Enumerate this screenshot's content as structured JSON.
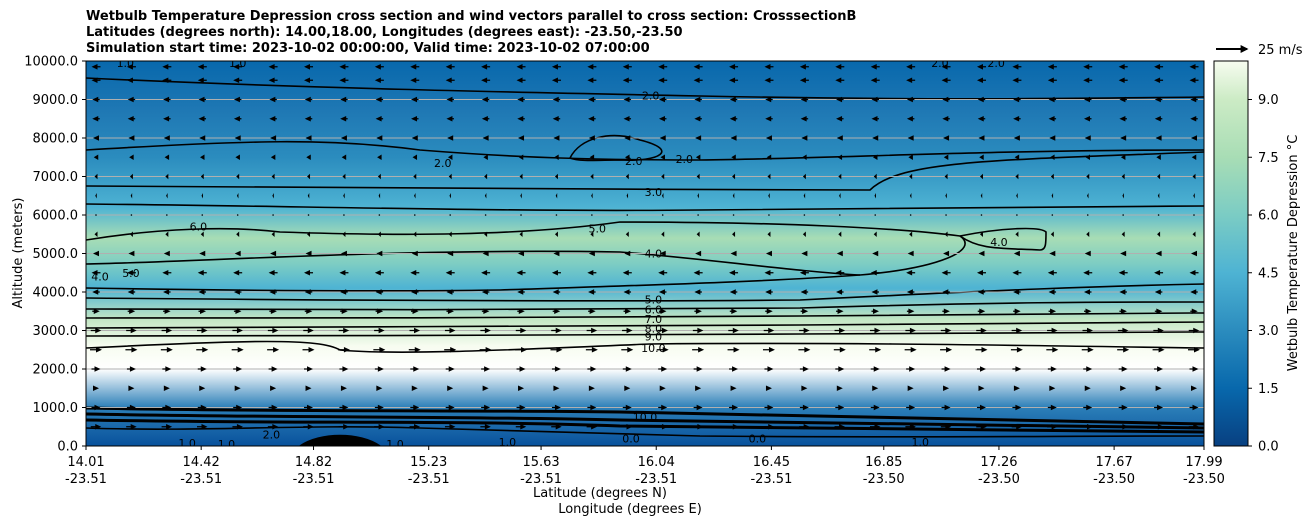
{
  "chart_data": {
    "type": "heatmap",
    "title_lines": [
      "Wetbulb Temperature Depression cross section and wind vectors parallel to cross section: CrosssectionB",
      "Latitudes (degrees north): 14.00,18.00, Longitudes (degrees east): -23.50,-23.50",
      "Simulation start time: 2023-10-02 00:00:00, Valid time: 2023-10-02 07:00:00"
    ],
    "ylabel": "Altitude (meters)",
    "xlabel_1": "Latitude (degrees N)",
    "xlabel_2": "Longitude (degrees E)",
    "ylim": [
      0,
      10000
    ],
    "y_ticks": [
      "0.0",
      "1000.0",
      "2000.0",
      "3000.0",
      "4000.0",
      "5000.0",
      "6000.0",
      "7000.0",
      "8000.0",
      "9000.0",
      "10000.0"
    ],
    "x_range": [
      14.01,
      17.99
    ],
    "x_ticks": [
      {
        "lat": "14.01",
        "lon": "-23.51"
      },
      {
        "lat": "14.42",
        "lon": "-23.51"
      },
      {
        "lat": "14.82",
        "lon": "-23.51"
      },
      {
        "lat": "15.23",
        "lon": "-23.51"
      },
      {
        "lat": "15.63",
        "lon": "-23.51"
      },
      {
        "lat": "16.04",
        "lon": "-23.51"
      },
      {
        "lat": "16.45",
        "lon": "-23.51"
      },
      {
        "lat": "16.85",
        "lon": "-23.50"
      },
      {
        "lat": "17.26",
        "lon": "-23.50"
      },
      {
        "lat": "17.67",
        "lon": "-23.50"
      },
      {
        "lat": "17.99",
        "lon": "-23.50"
      }
    ],
    "grid": true,
    "colorbar": {
      "label": "Wetbulb Temperature Depression °C",
      "ticks": [
        "0.0",
        "1.5",
        "3.0",
        "4.5",
        "6.0",
        "7.5",
        "9.0"
      ],
      "range": [
        0,
        10
      ]
    },
    "quiver_key": {
      "label": "25 m/s"
    },
    "contour_labels": [
      {
        "text": "1.0",
        "lat": 14.15,
        "alt": 9950
      },
      {
        "text": "1.0",
        "lat": 14.55,
        "alt": 9950
      },
      {
        "text": "2.0",
        "lat": 16.02,
        "alt": 9100
      },
      {
        "text": "2.0",
        "lat": 17.05,
        "alt": 9950
      },
      {
        "text": "2.0",
        "lat": 17.25,
        "alt": 9950
      },
      {
        "text": "2.0",
        "lat": 15.28,
        "alt": 7350
      },
      {
        "text": "2.0",
        "lat": 15.96,
        "alt": 7400
      },
      {
        "text": "2.0",
        "lat": 16.14,
        "alt": 7450
      },
      {
        "text": "3.0",
        "lat": 16.03,
        "alt": 6600
      },
      {
        "text": "6.0",
        "lat": 14.41,
        "alt": 5700
      },
      {
        "text": "5.0",
        "lat": 15.83,
        "alt": 5650
      },
      {
        "text": "4.0",
        "lat": 16.03,
        "alt": 5000
      },
      {
        "text": "4.0",
        "lat": 17.26,
        "alt": 5300
      },
      {
        "text": "4.0",
        "lat": 14.06,
        "alt": 4400
      },
      {
        "text": "5.0",
        "lat": 14.17,
        "alt": 4500
      },
      {
        "text": "5.0",
        "lat": 16.03,
        "alt": 3800
      },
      {
        "text": "6.0",
        "lat": 16.03,
        "alt": 3550
      },
      {
        "text": "7.0",
        "lat": 16.03,
        "alt": 3300
      },
      {
        "text": "8.0",
        "lat": 16.03,
        "alt": 3050
      },
      {
        "text": "9.0",
        "lat": 16.03,
        "alt": 2850
      },
      {
        "text": "10.0",
        "lat": 16.03,
        "alt": 2550
      },
      {
        "text": "10.0",
        "lat": 16.0,
        "alt": 750
      },
      {
        "text": "1.0",
        "lat": 14.37,
        "alt": 80
      },
      {
        "text": "1.0",
        "lat": 14.51,
        "alt": 50
      },
      {
        "text": "2.0",
        "lat": 14.67,
        "alt": 300
      },
      {
        "text": "1.0",
        "lat": 15.11,
        "alt": 50
      },
      {
        "text": "1.0",
        "lat": 15.51,
        "alt": 100
      },
      {
        "text": "0.0",
        "lat": 15.95,
        "alt": 200
      },
      {
        "text": "0.0",
        "lat": 16.4,
        "alt": 200
      },
      {
        "text": "1.0",
        "lat": 16.98,
        "alt": 100
      }
    ],
    "wind_rows": [
      {
        "alt": 9850,
        "u": -3
      },
      {
        "alt": 9500,
        "u": -3
      },
      {
        "alt": 9000,
        "u": -2.5
      },
      {
        "alt": 8500,
        "u": -2.5
      },
      {
        "alt": 8000,
        "u": -2
      },
      {
        "alt": 7500,
        "u": -1.5
      },
      {
        "alt": 7000,
        "u": -1
      },
      {
        "alt": 6500,
        "u": -0.5
      },
      {
        "alt": 6000,
        "u": -0.3
      },
      {
        "alt": 5500,
        "u": -1
      },
      {
        "alt": 5000,
        "u": -2
      },
      {
        "alt": 4500,
        "u": -3
      },
      {
        "alt": 4000,
        "u": -2.5
      },
      {
        "alt": 3500,
        "u": 2.5
      },
      {
        "alt": 3000,
        "u": 3.5
      },
      {
        "alt": 2500,
        "u": 4
      },
      {
        "alt": 2000,
        "u": 3
      },
      {
        "alt": 1500,
        "u": 2
      },
      {
        "alt": 1000,
        "u": 3
      },
      {
        "alt": 500,
        "u": 3.5
      }
    ]
  }
}
